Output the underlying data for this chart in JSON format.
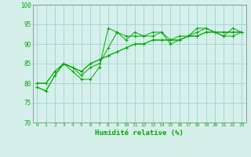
{
  "xlabel": "Humidité relative (%)",
  "background_color": "#d5f0eb",
  "grid_color": "#99cccc",
  "line_color": "#00aa00",
  "xlim": [
    -0.5,
    23.5
  ],
  "ylim": [
    70,
    100
  ],
  "yticks": [
    70,
    75,
    80,
    85,
    90,
    95,
    100
  ],
  "xticks": [
    0,
    1,
    2,
    3,
    4,
    5,
    6,
    7,
    8,
    9,
    10,
    11,
    12,
    13,
    14,
    15,
    16,
    17,
    18,
    19,
    20,
    21,
    22,
    23
  ],
  "series": [
    [
      79,
      78,
      82,
      85,
      83,
      81,
      81,
      84,
      94,
      93,
      91,
      93,
      92,
      93,
      93,
      91,
      91,
      92,
      94,
      94,
      93,
      92,
      94,
      93
    ],
    [
      79,
      78,
      82,
      85,
      84,
      82,
      84,
      85,
      89,
      93,
      92,
      92,
      92,
      92,
      93,
      90,
      91,
      92,
      93,
      94,
      93,
      92,
      92,
      93
    ],
    [
      80,
      80,
      83,
      85,
      84,
      83,
      85,
      86,
      87,
      88,
      89,
      90,
      90,
      91,
      91,
      91,
      91,
      92,
      92,
      93,
      93,
      93,
      93,
      93
    ],
    [
      80,
      80,
      83,
      85,
      84,
      83,
      85,
      86,
      87,
      88,
      89,
      90,
      90,
      91,
      91,
      91,
      92,
      92,
      92,
      93,
      93,
      93,
      93,
      93
    ]
  ]
}
